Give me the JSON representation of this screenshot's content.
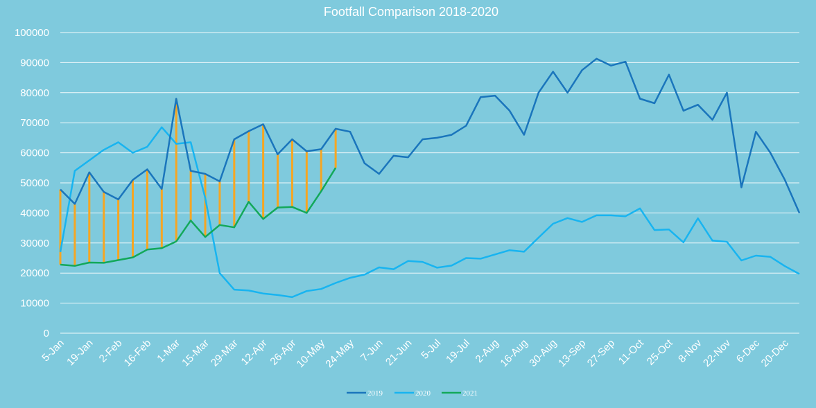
{
  "chart_data": {
    "type": "line",
    "title": "Footfall Comparison 2018-2020",
    "xlabel": "",
    "ylabel": "",
    "ylim": [
      0,
      100000
    ],
    "yticks": [
      0,
      10000,
      20000,
      30000,
      40000,
      50000,
      60000,
      70000,
      80000,
      90000,
      100000
    ],
    "xtick_labels": [
      "5-Jan",
      "19-Jan",
      "2-Feb",
      "16-Feb",
      "1-Mar",
      "15-Mar",
      "29-Mar",
      "12-Apr",
      "26-Apr",
      "10-May",
      "24-May",
      "7-Jun",
      "21-Jun",
      "5-Jul",
      "19-Jul",
      "2-Aug",
      "16-Aug",
      "30-Aug",
      "13-Sep",
      "27-Sep",
      "11-Oct",
      "25-Oct",
      "8-Nov",
      "22-Nov",
      "6-Dec",
      "20-Dec"
    ],
    "grid": true,
    "legend_position": "bottom",
    "hi_lo_lines": {
      "between": [
        "2019",
        "2021"
      ],
      "color": "#f5a623"
    },
    "series": [
      {
        "name": "2019",
        "color": "#1a75bc",
        "values": [
          47800,
          43000,
          53500,
          47000,
          44500,
          51000,
          54500,
          48000,
          78000,
          54000,
          53000,
          50500,
          64500,
          67200,
          69500,
          59500,
          64500,
          60500,
          61200,
          68000,
          67000,
          56500,
          53000,
          59000,
          58500,
          64500,
          65000,
          66000,
          69000,
          78500,
          79000,
          74000,
          66000,
          80000,
          87000,
          80000,
          87500,
          91300,
          89000,
          90300,
          78000,
          76500,
          86000,
          74000,
          76000,
          71000,
          80000,
          48500,
          67000,
          60000,
          51000,
          40000
        ]
      },
      {
        "name": "2020",
        "color": "#18b4f0",
        "values": [
          27000,
          54000,
          57500,
          61000,
          63500,
          60000,
          62000,
          68500,
          63000,
          63500,
          45000,
          20000,
          14500,
          14200,
          13200,
          12700,
          12000,
          14000,
          14700,
          16700,
          18400,
          19500,
          21900,
          21300,
          24000,
          23700,
          21800,
          22500,
          25000,
          24800,
          26200,
          27600,
          27100,
          31800,
          36400,
          38300,
          37000,
          39200,
          39200,
          38900,
          41500,
          34300,
          34500,
          30200,
          38200,
          30800,
          30400,
          24200,
          25800,
          25400,
          22300,
          19700
        ]
      },
      {
        "name": "2021",
        "color": "#13a85a",
        "values": [
          22800,
          22400,
          23500,
          23400,
          24300,
          25200,
          27800,
          28300,
          30500,
          37500,
          32000,
          36000,
          35200,
          43700,
          38000,
          41800,
          42000,
          40000,
          47200,
          55000
        ]
      }
    ]
  }
}
